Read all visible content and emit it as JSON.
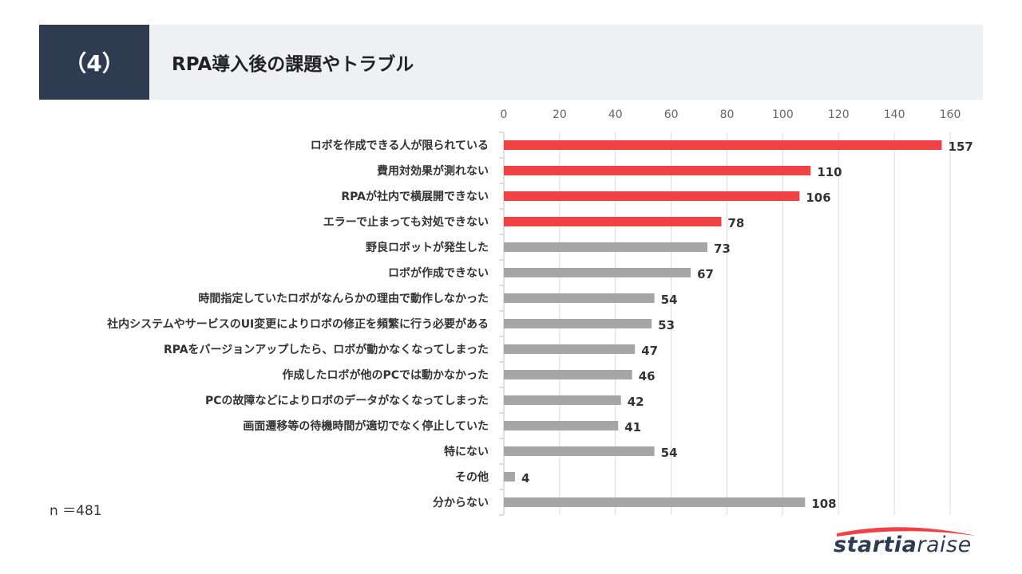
{
  "header": {
    "section": "（4）",
    "title": "RPA導入後の課題やトラブル"
  },
  "sample": "n ＝481",
  "logo": {
    "bold": "startia",
    "light": "raise"
  },
  "colors": {
    "highlight": "#ef4146",
    "normal": "#a6a6a6",
    "header_bg": "#eff0f4",
    "section_bg": "#2e3b50"
  },
  "chart_data": {
    "type": "bar",
    "orientation": "horizontal",
    "categories": [
      "ロボを作成できる人が限られている",
      "費用対効果が測れない",
      "RPAが社内で横展開できない",
      "エラーで止まっても対処できない",
      "野良ロボットが発生した",
      "ロボが作成できない",
      "時間指定していたロボがなんらかの理由で動作しなかった",
      "社内システムやサービスのUI変更によりロボの修正を頻繁に行う必要がある",
      "RPAをバージョンアップしたら、ロボが動かなくなってしまった",
      "作成したロボが他のPCでは動かなかった",
      "PCの故障などによりロボのデータがなくなってしまった",
      "画面遷移等の待機時間が適切でなく停止していた",
      "特にない",
      "その他",
      "分からない"
    ],
    "values": [
      157,
      110,
      106,
      78,
      73,
      67,
      54,
      53,
      47,
      46,
      42,
      41,
      54,
      4,
      108
    ],
    "highlighted": [
      true,
      true,
      true,
      true,
      false,
      false,
      false,
      false,
      false,
      false,
      false,
      false,
      false,
      false,
      false
    ],
    "xlim": [
      0,
      160
    ],
    "ticks": [
      0,
      20,
      40,
      60,
      80,
      100,
      120,
      140,
      160
    ],
    "axis_position": "top",
    "grid": true,
    "title": "",
    "xlabel": "",
    "ylabel": ""
  }
}
